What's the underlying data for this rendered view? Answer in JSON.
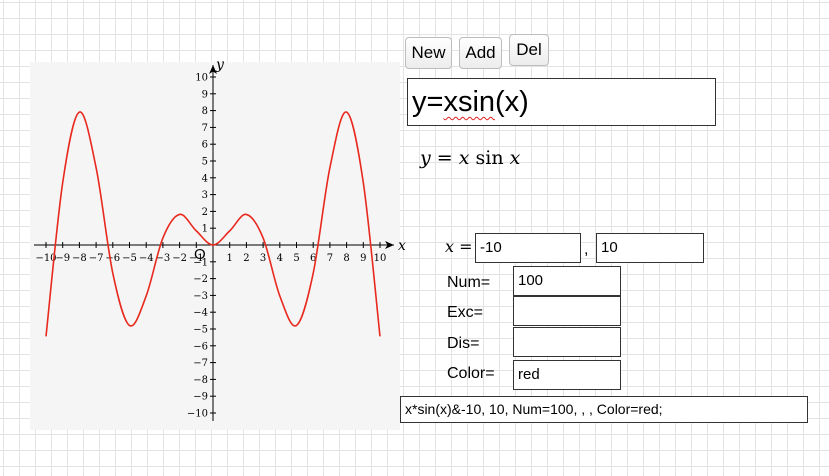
{
  "toolbar": {
    "new_label": "New",
    "add_label": "Add",
    "del_label": "Del"
  },
  "formula": {
    "input_prefix": "y=",
    "input_fn": "xsin",
    "input_suffix": "(x)",
    "math_lhs": "y",
    "math_eq": " = ",
    "math_var": "x",
    "math_fn": " sin ",
    "math_arg": "x"
  },
  "range": {
    "var_label": "x =",
    "from": "-10",
    "separator": ",",
    "to": "10"
  },
  "params": [
    {
      "key": "num",
      "label": "Num=",
      "value": "100"
    },
    {
      "key": "exc",
      "label": "Exc=",
      "value": ""
    },
    {
      "key": "dis",
      "label": "Dis=",
      "value": ""
    },
    {
      "key": "color",
      "label": "Color=",
      "value": "red"
    }
  ],
  "summary": "x*sin(x)&-10, 10, Num=100, , , Color=red;",
  "chart_data": {
    "type": "line",
    "title": "",
    "xlabel": "x",
    "ylabel": "y",
    "origin_label": "O",
    "xlim": [
      -10,
      10
    ],
    "ylim": [
      -10,
      10
    ],
    "x_ticks": [
      -10,
      -9,
      -8,
      -7,
      -6,
      -5,
      -4,
      -3,
      -2,
      -1,
      1,
      2,
      3,
      4,
      5,
      6,
      7,
      8,
      9,
      10
    ],
    "y_ticks": [
      -10,
      -9,
      -8,
      -7,
      -6,
      -5,
      -4,
      -3,
      -2,
      -1,
      1,
      2,
      3,
      4,
      5,
      6,
      7,
      8,
      9,
      10
    ],
    "grid": false,
    "series": [
      {
        "function": "x*sin(x)",
        "color": "#e8291e",
        "samples": 100,
        "x": [
          -10,
          -9,
          -8,
          -7,
          -6,
          -5,
          -4,
          -3,
          -2,
          -1,
          0,
          1,
          2,
          3,
          4,
          5,
          6,
          7,
          8,
          9,
          10
        ],
        "y": [
          -5.44,
          3.71,
          7.91,
          4.6,
          -1.68,
          -4.79,
          -3.03,
          0.42,
          1.82,
          0.84,
          0,
          0.84,
          1.82,
          0.42,
          -3.03,
          -4.79,
          -1.68,
          4.6,
          7.91,
          3.71,
          -5.44
        ]
      }
    ]
  }
}
